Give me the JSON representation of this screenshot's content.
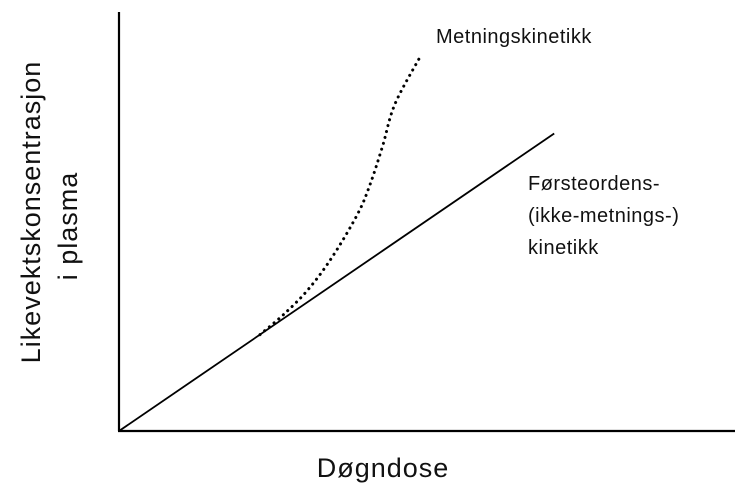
{
  "chart_data": {
    "type": "line",
    "xlabel": "Døgndose",
    "ylabel_lines": [
      "Likevektskonsentrasjon",
      "i plasma"
    ],
    "xlim": [
      0,
      1
    ],
    "ylim": [
      0,
      1
    ],
    "grid": false,
    "ticks": false,
    "series": [
      {
        "name_lines": [
          "Førsteordens-",
          "(ikke-metnings-)",
          "kinetikk"
        ],
        "style": "solid",
        "x": [
          0,
          0.71
        ],
        "y": [
          0,
          0.71
        ]
      },
      {
        "name_lines": [
          "Metningskinetikk"
        ],
        "style": "dotted",
        "x": [
          0.23,
          0.27,
          0.31,
          0.35,
          0.39,
          0.41,
          0.43,
          0.45,
          0.49
        ],
        "y": [
          0.23,
          0.28,
          0.34,
          0.42,
          0.52,
          0.59,
          0.68,
          0.78,
          0.89
        ]
      }
    ]
  }
}
